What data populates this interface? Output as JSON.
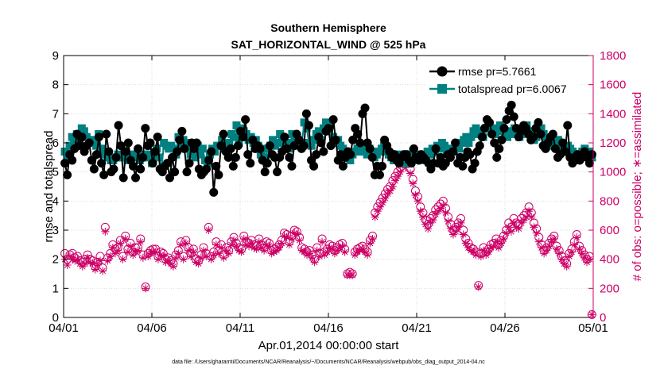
{
  "chart_data": {
    "type": "line",
    "title": "Southern Hemisphere",
    "subtitle": "SAT_HORIZONTAL_WIND @ 525 hPa",
    "xlabel": "Apr.01,2014 00:00:00 start",
    "ylabel": "rmse and totalspread",
    "y2label": "# of obs: o=possible; ∗=assimilated",
    "xlim": [
      0,
      30
    ],
    "ylim": [
      0,
      9
    ],
    "y2lim": [
      0,
      1800
    ],
    "x_ticks": [
      0,
      5,
      10,
      15,
      20,
      25,
      30
    ],
    "x_tick_labels": [
      "04/01",
      "04/06",
      "04/11",
      "04/16",
      "04/21",
      "04/26",
      "05/01"
    ],
    "y_ticks": [
      "0",
      "1",
      "2",
      "3",
      "4",
      "5",
      "6",
      "7",
      "8",
      "9"
    ],
    "y2_ticks": [
      "0",
      "200",
      "400",
      "600",
      "800",
      "1000",
      "1200",
      "1400",
      "1600",
      "1800"
    ],
    "grid": true,
    "legend_position": "top-right",
    "series": [
      {
        "name": "rmse pr=5.7661",
        "axis": "left",
        "color": "#000000",
        "marker": "circle",
        "values": [
          5.3,
          4.9,
          5.6,
          5.4,
          5.8,
          6.3,
          5.9,
          6.2,
          5.7,
          5.9,
          6.0,
          5.4,
          5.1,
          5.6,
          6.2,
          5.3,
          4.9,
          6.3,
          5.7,
          5.0,
          5.1,
          5.5,
          6.6,
          5.9,
          4.8,
          5.7,
          6.0,
          5.4,
          5.2,
          4.8,
          5.8,
          5.1,
          5.5,
          6.5,
          5.9,
          6.0,
          5.3,
          5.7,
          6.2,
          5.1,
          5.0,
          5.2,
          5.3,
          4.8,
          5.5,
          5.0,
          5.7,
          6.1,
          6.4,
          5.8,
          5.0,
          5.3,
          6.0,
          5.8,
          6.0,
          5.1,
          4.9,
          5.0,
          5.1,
          5.4,
          5.7,
          4.3,
          5.2,
          4.9,
          5.9,
          6.3,
          5.7,
          5.5,
          5.8,
          5.2,
          5.5,
          5.9,
          6.4,
          6.2,
          6.8,
          5.6,
          5.3,
          6.1,
          5.8,
          5.9,
          5.8,
          5.4,
          5.0,
          5.3,
          5.9,
          5.6,
          5.5,
          5.0,
          5.5,
          5.7,
          6.2,
          5.8,
          5.5,
          5.2,
          5.9,
          6.3,
          6.1,
          5.8,
          5.9,
          7.0,
          6.6,
          5.4,
          5.2,
          5.6,
          6.2,
          6.0,
          5.7,
          6.4,
          6.5,
          5.9,
          6.8,
          6.1,
          5.4,
          5.6,
          5.2,
          5.5,
          5.7,
          5.6,
          6.1,
          6.5,
          6.3,
          6.0,
          7.0,
          7.2,
          6.0,
          5.8,
          5.5,
          4.9,
          5.2,
          4.9,
          5.2,
          6.1,
          5.9,
          5.7,
          5.5,
          5.6,
          5.4,
          5.3,
          5.5,
          5.6,
          5.6,
          5.4,
          5.3,
          5.8,
          5.5,
          5.4,
          5.6,
          5.5,
          5.4,
          5.3,
          5.1,
          5.3,
          5.8,
          5.3,
          5.5,
          5.2,
          5.3,
          5.6,
          5.5,
          5.7,
          6.0,
          5.3,
          5.5,
          5.2,
          5.5,
          5.7,
          5.6,
          5.1,
          5.3,
          5.7,
          5.9,
          6.2,
          6.5,
          6.8,
          6.7,
          6.3,
          6.0,
          5.5,
          5.8,
          6.1,
          6.5,
          6.8,
          7.1,
          7.3,
          6.9,
          6.5,
          6.2,
          6.4,
          6.6,
          6.5,
          6.3,
          6.1,
          6.2,
          6.5,
          6.7,
          6.3,
          5.9,
          5.8,
          6.0,
          6.2,
          6.3,
          5.8,
          5.5,
          5.6,
          6.0,
          5.7,
          6.6,
          5.5,
          5.3,
          5.4,
          5.6,
          5.4,
          5.5,
          5.7,
          5.5,
          5.3,
          5.6
        ]
      },
      {
        "name": "totalspread pr=6.0067",
        "axis": "left",
        "color": "#008080",
        "marker": "square",
        "values": [
          5.7,
          5.5,
          5.9,
          6.2,
          6.0,
          6.3,
          6.1,
          6.5,
          6.4,
          6.2,
          6.0,
          6.1,
          6.0,
          5.9,
          6.3,
          5.8,
          5.6,
          5.6,
          5.5,
          5.4,
          5.4,
          5.5,
          5.6,
          5.5,
          5.5,
          5.6,
          5.4,
          5.5,
          5.6,
          5.5,
          5.6,
          5.4,
          5.5,
          5.6,
          5.5,
          5.6,
          5.3,
          5.5,
          5.8,
          5.5,
          5.1,
          6.0,
          5.9,
          5.8,
          5.9,
          5.8,
          5.6,
          6.2,
          5.9,
          6.1,
          5.8,
          6.0,
          5.6,
          5.8,
          5.5,
          5.9,
          5.6,
          5.8,
          5.4,
          5.3,
          5.6,
          5.8,
          5.7,
          5.9,
          5.9,
          6.1,
          5.8,
          5.8,
          6.0,
          6.3,
          6.2,
          6.6,
          6.0,
          6.5,
          6.4,
          6.3,
          6.1,
          6.2,
          6.0,
          6.1,
          5.9,
          5.6,
          5.8,
          5.5,
          5.8,
          5.9,
          6.1,
          5.9,
          6.0,
          6.3,
          6.1,
          5.9,
          6.0,
          5.8,
          6.3,
          6.1,
          6.2,
          5.9,
          6.0,
          6.7,
          6.5,
          6.0,
          5.9,
          6.1,
          6.3,
          6.4,
          6.1,
          6.5,
          6.7,
          6.4,
          6.6,
          6.2,
          6.0,
          6.1,
          5.9,
          5.8,
          5.5,
          5.6,
          5.4,
          5.6,
          5.7,
          5.8,
          5.9,
          5.7,
          5.8,
          5.6,
          5.8,
          5.7,
          5.5,
          5.6,
          5.7,
          5.8,
          5.9,
          5.7,
          5.6,
          5.5,
          5.4,
          5.5,
          5.6,
          5.5,
          5.4,
          5.3,
          5.5,
          5.6,
          5.7,
          5.6,
          5.5,
          5.4,
          5.6,
          5.5,
          5.7,
          5.6,
          5.8,
          5.7,
          5.9,
          5.8,
          6.0,
          5.9,
          5.7,
          5.6,
          5.8,
          5.7,
          5.9,
          5.8,
          6.0,
          6.1,
          6.2,
          6.0,
          6.2,
          6.4,
          6.5,
          6.3,
          6.4,
          6.2,
          6.5,
          6.6,
          6.5,
          6.4,
          6.3,
          6.5,
          6.6,
          6.4,
          6.3,
          6.2,
          6.4,
          6.3,
          6.5,
          6.4,
          6.2,
          6.3,
          6.5,
          6.6,
          6.4,
          6.3,
          6.1,
          6.2,
          6.4,
          6.5,
          6.3,
          6.1,
          6.0,
          6.1,
          5.9,
          6.0,
          6.1,
          5.9,
          5.8,
          5.7,
          5.9,
          5.8,
          5.7,
          5.6,
          5.5,
          5.6,
          5.7,
          5.8,
          5.6,
          5.7,
          5.5
        ]
      },
      {
        "name": "possible",
        "axis": "right",
        "color": "#cc0066",
        "marker": "o",
        "values": [
          440,
          400,
          430,
          440,
          410,
          420,
          390,
          380,
          400,
          430,
          400,
          390,
          350,
          380,
          420,
          340,
          620,
          410,
          440,
          500,
          470,
          480,
          530,
          420,
          560,
          470,
          510,
          450,
          480,
          480,
          540,
          430,
          210,
          440,
          460,
          470,
          470,
          420,
          450,
          440,
          400,
          410,
          390,
          370,
          430,
          460,
          520,
          420,
          530,
          480,
          440,
          470,
          400,
          390,
          430,
          480,
          440,
          620,
          420,
          450,
          520,
          460,
          500,
          430,
          480,
          460,
          520,
          550,
          510,
          480,
          470,
          560,
          520,
          510,
          530,
          500,
          490,
          540,
          500,
          480,
          520,
          510,
          460,
          470,
          480,
          500,
          530,
          580,
          570,
          520,
          560,
          600,
          590,
          550,
          480,
          470,
          450,
          460,
          430,
          400,
          480,
          440,
          540,
          450,
          470,
          500,
          490,
          460,
          480,
          500,
          510,
          470,
          300,
          310,
          300,
          450,
          470,
          480,
          490,
          470,
          450,
          530,
          560,
          720,
          760,
          790,
          820,
          850,
          880,
          900,
          940,
          970,
          1000,
          1030,
          1080,
          1060,
          1100,
          1020,
          950,
          870,
          830,
          760,
          720,
          670,
          640,
          680,
          700,
          740,
          760,
          780,
          800,
          750,
          690,
          640,
          600,
          620,
          650,
          680,
          600,
          540,
          510,
          480,
          470,
          450,
          220,
          440,
          480,
          450,
          470,
          500,
          510,
          540,
          500,
          530,
          560,
          600,
          650,
          620,
          680,
          650,
          640,
          680,
          700,
          720,
          760,
          720,
          650,
          610,
          550,
          500,
          460,
          480,
          510,
          540,
          560,
          490,
          460,
          420,
          390,
          370,
          440,
          470,
          520,
          570,
          490,
          460,
          430,
          400,
          420,
          20
        ]
      },
      {
        "name": "assimilated",
        "axis": "right",
        "color": "#cc0066",
        "marker": "*",
        "values": [
          400,
          360,
          420,
          400,
          390,
          400,
          370,
          350,
          370,
          410,
          380,
          370,
          330,
          360,
          390,
          320,
          590,
          390,
          420,
          480,
          440,
          460,
          510,
          400,
          540,
          450,
          490,
          430,
          450,
          460,
          520,
          410,
          200,
          420,
          440,
          450,
          450,
          400,
          430,
          420,
          380,
          390,
          370,
          350,
          410,
          440,
          500,
          400,
          510,
          460,
          420,
          450,
          380,
          370,
          410,
          460,
          420,
          600,
          400,
          430,
          500,
          440,
          480,
          410,
          460,
          440,
          500,
          530,
          490,
          460,
          450,
          540,
          500,
          490,
          510,
          480,
          470,
          520,
          480,
          460,
          500,
          490,
          440,
          450,
          460,
          480,
          510,
          560,
          550,
          500,
          540,
          580,
          570,
          530,
          460,
          450,
          430,
          440,
          410,
          380,
          460,
          420,
          520,
          430,
          450,
          480,
          470,
          440,
          460,
          480,
          490,
          450,
          290,
          290,
          290,
          430,
          450,
          460,
          470,
          450,
          430,
          510,
          540,
          690,
          730,
          760,
          790,
          820,
          850,
          870,
          900,
          940,
          970,
          1000,
          1050,
          1030,
          1070,
          990,
          920,
          840,
          800,
          730,
          690,
          640,
          610,
          650,
          670,
          710,
          730,
          750,
          770,
          720,
          660,
          610,
          570,
          590,
          620,
          650,
          570,
          510,
          480,
          460,
          450,
          430,
          210,
          420,
          460,
          430,
          450,
          480,
          490,
          520,
          480,
          510,
          540,
          580,
          620,
          590,
          650,
          620,
          610,
          650,
          670,
          690,
          730,
          690,
          620,
          580,
          520,
          480,
          440,
          460,
          490,
          520,
          540,
          470,
          440,
          400,
          370,
          350,
          420,
          450,
          500,
          550,
          470,
          440,
          410,
          380,
          400,
          20
        ]
      }
    ]
  },
  "footnote": "data file: /Users/gharamti/Documents/NCAR/Reanalysis/~/Documents/NCAR/Reanalysis/webpub/obs_diag_output_2014-04.nc"
}
